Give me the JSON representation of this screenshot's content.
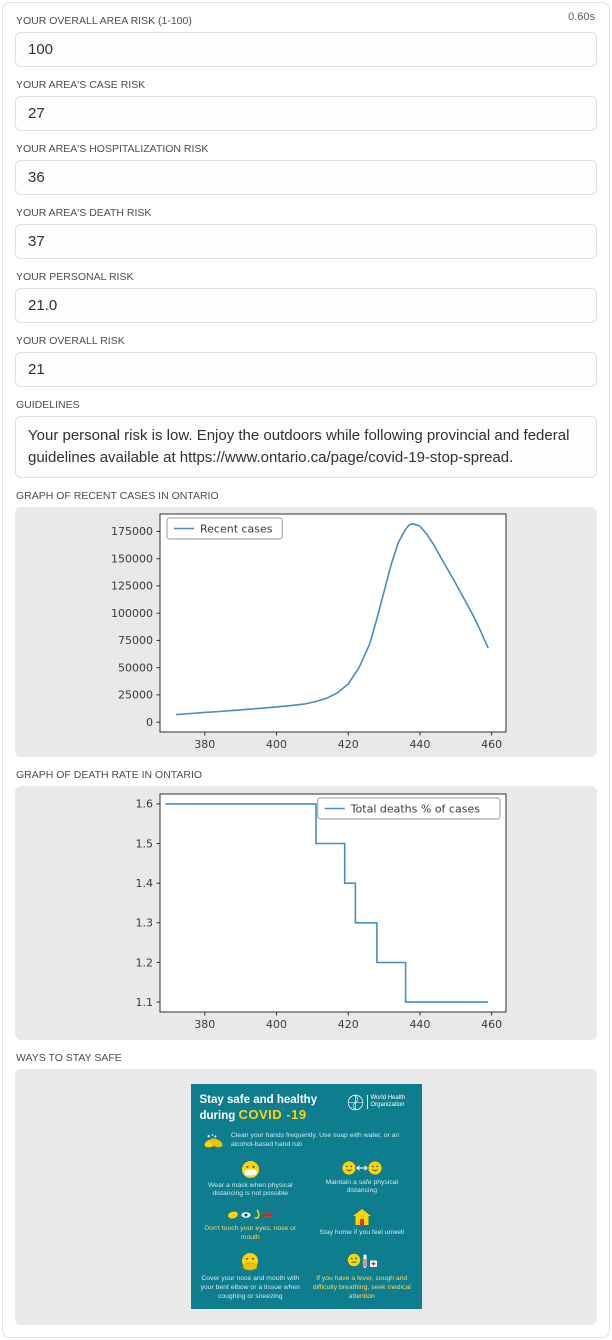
{
  "meta": {
    "duration": "0.60s"
  },
  "fields": [
    {
      "label": "YOUR OVERALL AREA RISK (1-100)",
      "value": "100"
    },
    {
      "label": "YOUR AREA'S CASE RISK",
      "value": "27"
    },
    {
      "label": "YOUR AREA'S HOSPITALIZATION RISK",
      "value": "36"
    },
    {
      "label": "YOUR AREA'S DEATH RISK",
      "value": "37"
    },
    {
      "label": "YOUR PERSONAL RISK",
      "value": "21.0"
    },
    {
      "label": "YOUR OVERALL RISK",
      "value": "21"
    }
  ],
  "guidelines": {
    "label": "GUIDELINES",
    "value": "Your personal risk is low. Enjoy the outdoors while following provincial and federal guidelines available at https://www.ontario.ca/page/covid-19-stop-spread."
  },
  "sections": {
    "cases_chart_label": "GRAPH OF RECENT CASES IN ONTARIO",
    "deaths_chart_label": "GRAPH OF DEATH RATE IN ONTARIO",
    "safety_label": "WAYS TO STAY SAFE"
  },
  "chart_data": [
    {
      "type": "line",
      "title": "",
      "legend": {
        "label": "Recent cases",
        "position": "left"
      },
      "color": "#4a8cc2",
      "xlim": [
        367.5,
        464
      ],
      "ylim": [
        -9000,
        191000
      ],
      "xticks": [
        380,
        400,
        420,
        440,
        460
      ],
      "yticks": [
        0,
        25000,
        50000,
        75000,
        100000,
        125000,
        150000,
        175000
      ],
      "grid": false,
      "series": [
        {
          "name": "Recent cases",
          "x": [
            372,
            376,
            380,
            384,
            388,
            392,
            396,
            400,
            404,
            408,
            411,
            414,
            417,
            420,
            423,
            426,
            428,
            430,
            432,
            434,
            436,
            437,
            438,
            440,
            442,
            444,
            446,
            449,
            452,
            455,
            457,
            459
          ],
          "y": [
            7000,
            8000,
            9000,
            9800,
            10800,
            11800,
            12800,
            14000,
            15200,
            16800,
            19000,
            22000,
            27000,
            35000,
            50000,
            72000,
            95000,
            120000,
            145000,
            165000,
            177000,
            181000,
            182000,
            180000,
            172000,
            162000,
            150000,
            133000,
            115000,
            97000,
            83000,
            68000
          ]
        }
      ]
    },
    {
      "type": "line",
      "title": "",
      "legend": {
        "label": "Total deaths % of cases",
        "position": "right"
      },
      "color": "#4a8cc2",
      "xlim": [
        367.5,
        464
      ],
      "ylim": [
        1.075,
        1.625
      ],
      "xticks": [
        380,
        400,
        420,
        440,
        460
      ],
      "yticks": [
        1.1,
        1.2,
        1.3,
        1.4,
        1.5,
        1.6
      ],
      "grid": false,
      "series": [
        {
          "name": "Total deaths % of cases",
          "x": [
            369,
            411,
            411,
            419,
            419,
            422,
            422,
            428,
            428,
            436,
            436,
            459
          ],
          "y": [
            1.6,
            1.6,
            1.5,
            1.5,
            1.4,
            1.4,
            1.3,
            1.3,
            1.2,
            1.2,
            1.1,
            1.1
          ]
        }
      ]
    }
  ],
  "infographic": {
    "title_line1": "Stay safe and healthy",
    "title_line2_prefix": "during",
    "title_line2_highlight": "COVID -19",
    "who_name": "World Health Organization",
    "items": [
      {
        "id": "handwash",
        "text": "Clean your hands frequently. Use soap with water, or an alcohol-based hand rub"
      },
      {
        "id": "mask",
        "text": "Wear a mask when physical distancing is not possible"
      },
      {
        "id": "distance",
        "text": "Maintain a safe physical distancing"
      },
      {
        "id": "face",
        "text": "Don't touch your eyes, nose or mouth"
      },
      {
        "id": "home",
        "text": "Stay home if you feel unwell"
      },
      {
        "id": "cough",
        "text": "Cover your nose and mouth with your bent elbow or a tissue when coughing or sneezing"
      },
      {
        "id": "fever",
        "text": "If you have a fever, cough and difficulty breathing, seek medical attention"
      }
    ],
    "colors": {
      "background": "#0e7d8d",
      "highlight": "#ffd400",
      "body_text": "#cfeaf0",
      "line_color": "#4a8cc2"
    }
  }
}
